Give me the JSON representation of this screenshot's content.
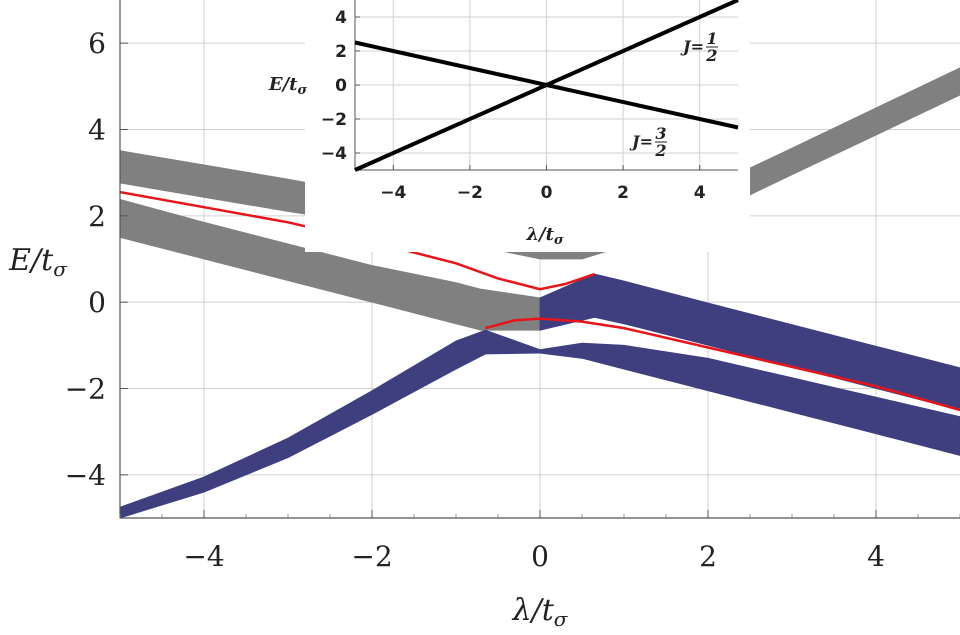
{
  "chart_data": [
    {
      "type": "area",
      "xlabel": "λ/t",
      "xlabel_sub": "σ",
      "ylabel": "E/t",
      "ylabel_sub": "σ",
      "xlim": [
        -5,
        5
      ],
      "ylim": [
        -5,
        7
      ],
      "xticks": [
        -4,
        -2,
        0,
        2,
        4
      ],
      "xtick_labels": [
        "−4",
        "−2",
        "0",
        "2",
        "4"
      ],
      "yticks": [
        -4,
        -2,
        0,
        2,
        4,
        6
      ],
      "ytick_labels": [
        "−4",
        "−2",
        "0",
        "2",
        "4",
        "6"
      ],
      "grid": true,
      "colors": {
        "gray_band": "#808080",
        "blue_band": "#3f3f80",
        "red_curve": "#e8141a",
        "grid": "#d0d0d0"
      },
      "series": [
        {
          "kind": "band",
          "color": "gray",
          "x": [
            -5,
            -4,
            -3,
            -2,
            -1,
            -0.5,
            0,
            0.5,
            1,
            2,
            3,
            4,
            5
          ],
          "lower": [
            2.76,
            2.43,
            2.1,
            1.8,
            1.45,
            1.2,
            1.0,
            1.0,
            1.3,
            2.02,
            2.95,
            3.87,
            4.8
          ],
          "upper": [
            3.51,
            3.18,
            2.85,
            2.5,
            2.1,
            1.65,
            1.2,
            1.3,
            1.75,
            2.65,
            3.57,
            4.5,
            5.43
          ]
        },
        {
          "kind": "band",
          "color": "gray",
          "x": [
            -5,
            -4,
            -3,
            -2,
            -1,
            -0.7,
            0
          ],
          "lower": [
            1.5,
            1.0,
            0.5,
            0.0,
            -0.5,
            -0.65,
            -0.65
          ],
          "upper": [
            2.38,
            1.85,
            1.35,
            0.85,
            0.45,
            0.3,
            0.1
          ]
        },
        {
          "kind": "band",
          "color": "blue",
          "x": [
            0,
            0.65,
            1,
            2,
            3,
            4,
            5
          ],
          "lower": [
            -0.65,
            -0.35,
            -0.5,
            -1.0,
            -1.5,
            -2.0,
            -2.5
          ],
          "upper": [
            0.1,
            0.65,
            0.49,
            -0.02,
            -0.52,
            -1.02,
            -1.52
          ]
        },
        {
          "kind": "band",
          "color": "blue",
          "x": [
            -5,
            -4,
            -3,
            -2,
            -1,
            -0.65,
            0
          ],
          "lower": [
            -5.0,
            -4.4,
            -3.6,
            -2.6,
            -1.55,
            -1.2,
            -1.18
          ],
          "upper": [
            -4.75,
            -4.05,
            -3.15,
            -2.05,
            -0.9,
            -0.65,
            -1.1
          ]
        },
        {
          "kind": "band",
          "color": "blue",
          "x": [
            0,
            0.5,
            1,
            2,
            3,
            4,
            5
          ],
          "lower": [
            -1.18,
            -1.3,
            -1.55,
            -2.05,
            -2.55,
            -3.05,
            -3.55
          ],
          "upper": [
            -1.1,
            -0.95,
            -1.0,
            -1.3,
            -1.75,
            -2.2,
            -2.65
          ]
        },
        {
          "kind": "line",
          "color": "red",
          "x": [
            -5,
            -4,
            -3,
            -2,
            -1,
            -0.5,
            0,
            0.3,
            0.65
          ],
          "y": [
            2.55,
            2.2,
            1.85,
            1.4,
            0.9,
            0.55,
            0.3,
            0.42,
            0.65
          ]
        },
        {
          "kind": "line",
          "color": "red",
          "x": [
            -0.65,
            -0.3,
            0,
            0.5,
            1,
            2,
            3,
            4,
            5
          ],
          "y": [
            -0.6,
            -0.42,
            -0.38,
            -0.45,
            -0.6,
            -1.05,
            -1.5,
            -1.95,
            -2.5
          ]
        }
      ]
    },
    {
      "type": "line",
      "inset": true,
      "xlabel": "λ/t",
      "xlabel_sub": "σ",
      "ylabel": "E/t",
      "ylabel_sub": "σ",
      "xlim": [
        -5,
        5
      ],
      "ylim": [
        -5,
        5
      ],
      "xticks": [
        -4,
        -2,
        0,
        2,
        4
      ],
      "xtick_labels": [
        "−4",
        "−2",
        "0",
        "2",
        "4"
      ],
      "yticks": [
        -4,
        -2,
        0,
        2,
        4
      ],
      "ytick_labels": [
        "−4",
        "−2",
        "0",
        "2",
        "4"
      ],
      "grid": true,
      "series": [
        {
          "x": [
            -5,
            5
          ],
          "y": [
            -5,
            5
          ],
          "label": "J=1/2"
        },
        {
          "x": [
            -5,
            5
          ],
          "y": [
            2.5,
            -2.5
          ],
          "label": "J=3/2"
        }
      ],
      "annotations": [
        {
          "text": "J=",
          "frac_num": "1",
          "frac_den": "2"
        },
        {
          "text": "J=",
          "frac_num": "3",
          "frac_den": "2"
        }
      ]
    }
  ]
}
